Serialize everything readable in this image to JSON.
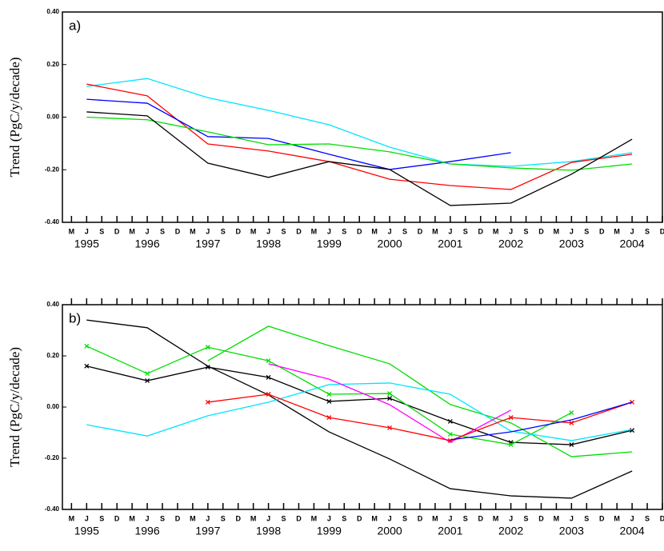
{
  "chart_data": [
    {
      "type": "line",
      "panel_label": "a)",
      "ylabel": "Trend (PgC/y/decade)",
      "xlim": [
        1994.6,
        2004.5
      ],
      "ylim": [
        -0.4,
        0.4
      ],
      "yticks": [
        {
          "value": 0.4,
          "label": "0.40"
        },
        {
          "value": 0.2,
          "label": "0.20"
        },
        {
          "value": 0,
          "label": "0.00"
        },
        {
          "value": -0.2,
          "label": "-0.20"
        },
        {
          "value": -0.4,
          "label": "-0.40"
        }
      ],
      "xticks": [
        1995,
        1996,
        1997,
        1998,
        1999,
        2000,
        2001,
        2002,
        2003,
        2004
      ],
      "month_ticks": [
        {
          "value": 1994.75,
          "label": "M"
        },
        {
          "value": 1995,
          "label": "J"
        },
        {
          "value": 1995.25,
          "label": "S"
        },
        {
          "value": 1995.5,
          "label": "D"
        },
        {
          "value": 1995.75,
          "label": "M"
        },
        {
          "value": 1996,
          "label": "J"
        },
        {
          "value": 1996.25,
          "label": "S"
        },
        {
          "value": 1996.5,
          "label": "D"
        },
        {
          "value": 1996.75,
          "label": "M"
        },
        {
          "value": 1997,
          "label": "J"
        },
        {
          "value": 1997.25,
          "label": "S"
        },
        {
          "value": 1997.5,
          "label": "D"
        },
        {
          "value": 1997.75,
          "label": "M"
        },
        {
          "value": 1998,
          "label": "J"
        },
        {
          "value": 1998.25,
          "label": "S"
        },
        {
          "value": 1998.5,
          "label": "D"
        },
        {
          "value": 1998.75,
          "label": "M"
        },
        {
          "value": 1999,
          "label": "J"
        },
        {
          "value": 1999.25,
          "label": "S"
        },
        {
          "value": 1999.5,
          "label": "D"
        },
        {
          "value": 1999.75,
          "label": "M"
        },
        {
          "value": 2000,
          "label": "J"
        },
        {
          "value": 2000.25,
          "label": "S"
        },
        {
          "value": 2000.5,
          "label": "D"
        },
        {
          "value": 2000.75,
          "label": "M"
        },
        {
          "value": 2001,
          "label": "J"
        },
        {
          "value": 2001.25,
          "label": "S"
        },
        {
          "value": 2001.5,
          "label": "D"
        },
        {
          "value": 2001.75,
          "label": "M"
        },
        {
          "value": 2002,
          "label": "J"
        },
        {
          "value": 2002.25,
          "label": "S"
        },
        {
          "value": 2002.5,
          "label": "D"
        },
        {
          "value": 2002.75,
          "label": "M"
        },
        {
          "value": 2003,
          "label": "J"
        },
        {
          "value": 2003.25,
          "label": "S"
        },
        {
          "value": 2003.5,
          "label": "D"
        },
        {
          "value": 2003.75,
          "label": "M"
        },
        {
          "value": 2004,
          "label": "J"
        },
        {
          "value": 2004.25,
          "label": "S"
        },
        {
          "value": 2004.5,
          "label": "D"
        }
      ],
      "x": [
        1995,
        1996,
        1997,
        1998,
        1999,
        2000,
        2001,
        2002,
        2003,
        2004
      ],
      "series": [
        {
          "color": "#00e5ff",
          "values": [
            0.117,
            0.147,
            0.074,
            0.026,
            -0.029,
            -0.114,
            -0.178,
            -0.187,
            -0.169,
            -0.135
          ]
        },
        {
          "color": "#ff0000",
          "values": [
            0.126,
            0.081,
            -0.102,
            -0.129,
            -0.169,
            -0.236,
            -0.26,
            -0.275,
            -0.172,
            -0.141
          ]
        },
        {
          "color": "#0000ff",
          "values": [
            0.068,
            0.053,
            -0.074,
            -0.081,
            -0.141,
            -0.199,
            -0.169,
            -0.135,
            null,
            null
          ]
        },
        {
          "color": "#00dd00",
          "values": [
            0.0,
            -0.01,
            -0.056,
            -0.105,
            -0.102,
            -0.132,
            -0.178,
            -0.193,
            -0.202,
            -0.178
          ]
        },
        {
          "color": "#000000",
          "values": [
            0.02,
            0.005,
            -0.175,
            -0.229,
            -0.169,
            -0.199,
            -0.336,
            -0.327,
            -0.217,
            -0.084
          ]
        }
      ]
    },
    {
      "type": "line",
      "panel_label": "b)",
      "ylabel": "Trend (PgC/y/decade)",
      "xlim": [
        1994.6,
        2004.5
      ],
      "ylim": [
        -0.4,
        0.4
      ],
      "yticks": [
        {
          "value": 0.4,
          "label": "0.40"
        },
        {
          "value": 0.2,
          "label": "0.20"
        },
        {
          "value": 0,
          "label": "0.00"
        },
        {
          "value": -0.2,
          "label": "-0.20"
        },
        {
          "value": -0.4,
          "label": "-0.40"
        }
      ],
      "xticks": [
        1995,
        1996,
        1997,
        1998,
        1999,
        2000,
        2001,
        2002,
        2003,
        2004
      ],
      "month_ticks": [
        {
          "value": 1994.75,
          "label": "M"
        },
        {
          "value": 1995,
          "label": "J"
        },
        {
          "value": 1995.25,
          "label": "S"
        },
        {
          "value": 1995.5,
          "label": "D"
        },
        {
          "value": 1995.75,
          "label": "M"
        },
        {
          "value": 1996,
          "label": "J"
        },
        {
          "value": 1996.25,
          "label": "S"
        },
        {
          "value": 1996.5,
          "label": "D"
        },
        {
          "value": 1996.75,
          "label": "M"
        },
        {
          "value": 1997,
          "label": "J"
        },
        {
          "value": 1997.25,
          "label": "S"
        },
        {
          "value": 1997.5,
          "label": "D"
        },
        {
          "value": 1997.75,
          "label": "M"
        },
        {
          "value": 1998,
          "label": "J"
        },
        {
          "value": 1998.25,
          "label": "S"
        },
        {
          "value": 1998.5,
          "label": "D"
        },
        {
          "value": 1998.75,
          "label": "M"
        },
        {
          "value": 1999,
          "label": "J"
        },
        {
          "value": 1999.25,
          "label": "S"
        },
        {
          "value": 1999.5,
          "label": "D"
        },
        {
          "value": 1999.75,
          "label": "M"
        },
        {
          "value": 2000,
          "label": "J"
        },
        {
          "value": 2000.25,
          "label": "S"
        },
        {
          "value": 2000.5,
          "label": "D"
        },
        {
          "value": 2000.75,
          "label": "M"
        },
        {
          "value": 2001,
          "label": "J"
        },
        {
          "value": 2001.25,
          "label": "S"
        },
        {
          "value": 2001.5,
          "label": "D"
        },
        {
          "value": 2001.75,
          "label": "M"
        },
        {
          "value": 2002,
          "label": "J"
        },
        {
          "value": 2002.25,
          "label": "S"
        },
        {
          "value": 2002.5,
          "label": "D"
        },
        {
          "value": 2002.75,
          "label": "M"
        },
        {
          "value": 2003,
          "label": "J"
        },
        {
          "value": 2003.25,
          "label": "S"
        },
        {
          "value": 2003.5,
          "label": "D"
        },
        {
          "value": 2003.75,
          "label": "M"
        },
        {
          "value": 2004,
          "label": "J"
        },
        {
          "value": 2004.25,
          "label": "S"
        },
        {
          "value": 2004.5,
          "label": "D"
        }
      ],
      "x": [
        1995,
        1996,
        1997,
        1998,
        1999,
        2000,
        2001,
        2002,
        2003,
        2004
      ],
      "series": [
        {
          "color": "#000000",
          "markers": false,
          "values": [
            0.34,
            0.31,
            0.16,
            0.047,
            -0.097,
            -0.203,
            -0.319,
            -0.347,
            -0.356,
            -0.25
          ]
        },
        {
          "color": "#000000",
          "markers": true,
          "values": [
            0.16,
            0.103,
            0.156,
            0.116,
            0.022,
            0.034,
            -0.056,
            -0.138,
            -0.147,
            -0.091
          ]
        },
        {
          "color": "#00dd00",
          "markers": true,
          "values": [
            0.238,
            0.131,
            0.234,
            0.181,
            0.05,
            0.053,
            -0.106,
            -0.147,
            -0.022,
            null
          ]
        },
        {
          "color": "#00dd00",
          "markers": false,
          "values": [
            null,
            null,
            0.181,
            0.316,
            0.24,
            0.169,
            0.01,
            -0.062,
            -0.194,
            -0.175
          ]
        },
        {
          "color": "#00e5ff",
          "markers": false,
          "values": [
            -0.069,
            -0.113,
            -0.034,
            0.019,
            0.088,
            0.094,
            0.05,
            -0.094,
            -0.131,
            -0.088
          ]
        },
        {
          "color": "#ff00ff",
          "markers": false,
          "values": [
            null,
            null,
            null,
            0.169,
            0.109,
            0.009,
            -0.138,
            -0.012,
            null,
            null
          ]
        },
        {
          "color": "#ff0000",
          "markers": true,
          "values": [
            null,
            null,
            0.019,
            0.05,
            -0.041,
            -0.081,
            -0.131,
            -0.041,
            -0.062,
            0.019
          ]
        },
        {
          "color": "#0000ff",
          "markers": false,
          "values": [
            null,
            null,
            null,
            null,
            null,
            null,
            -0.128,
            -0.097,
            -0.05,
            0.019
          ]
        }
      ]
    }
  ]
}
